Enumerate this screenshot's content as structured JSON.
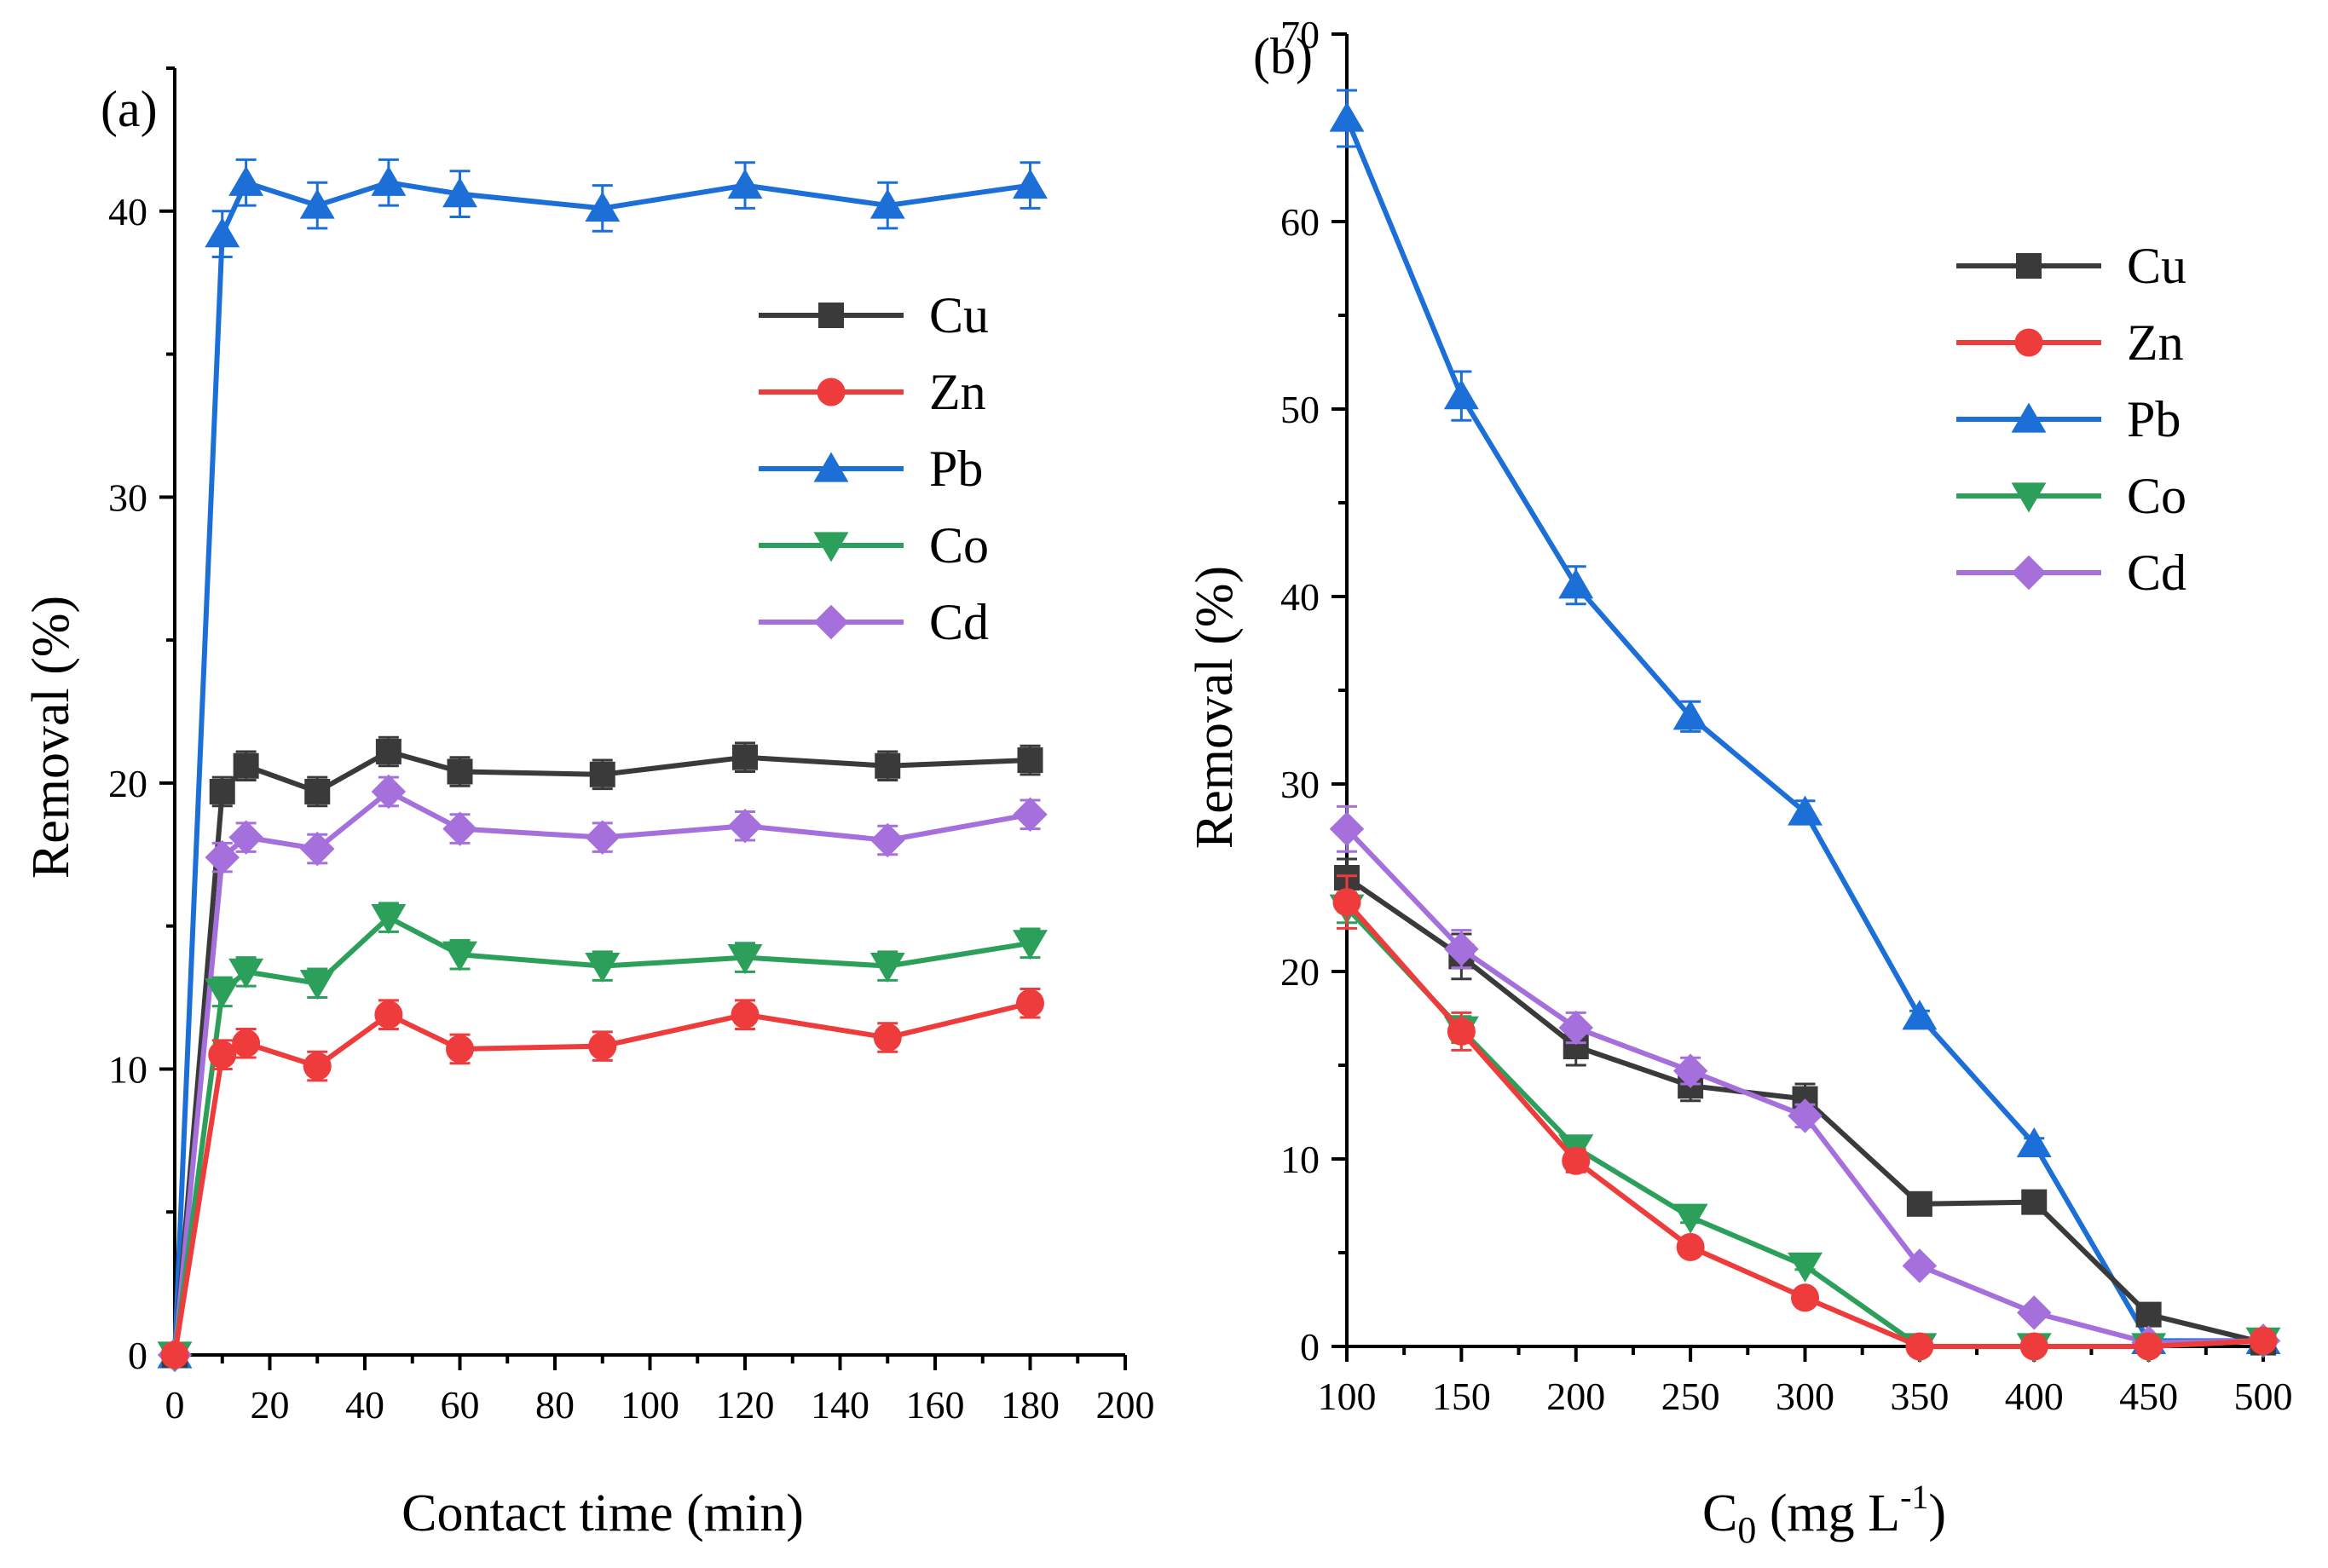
{
  "colors": {
    "Cu": "#3a3a3a",
    "Zn": "#ee3b3b",
    "Pb": "#1c6fd6",
    "Co": "#2ca05a",
    "Cd": "#a56fdc"
  },
  "chart_data": [
    {
      "type": "line",
      "panel": "(a)",
      "xlabel": "Contact time (min)",
      "ylabel": "Removal (%)",
      "xlim": [
        0,
        200
      ],
      "ylim": [
        0,
        45
      ],
      "xticks": [
        0,
        20,
        40,
        60,
        80,
        100,
        120,
        140,
        160,
        180,
        200
      ],
      "yticks": [
        0,
        10,
        20,
        30,
        40
      ],
      "legend_position": "right",
      "x": [
        0,
        10,
        15,
        30,
        45,
        60,
        90,
        120,
        150,
        180
      ],
      "series": [
        {
          "name": "Cu",
          "marker": "square",
          "values": [
            0,
            19.7,
            20.6,
            19.7,
            21.1,
            20.4,
            20.3,
            20.9,
            20.6,
            20.8
          ],
          "errors": [
            0,
            0.5,
            0.5,
            0.5,
            0.5,
            0.5,
            0.5,
            0.5,
            0.5,
            0.5
          ]
        },
        {
          "name": "Zn",
          "marker": "circle",
          "values": [
            0,
            10.5,
            10.9,
            10.1,
            11.9,
            10.7,
            10.8,
            11.9,
            11.1,
            12.3
          ],
          "errors": [
            0,
            0.5,
            0.5,
            0.5,
            0.5,
            0.5,
            0.5,
            0.5,
            0.5,
            0.5
          ]
        },
        {
          "name": "Pb",
          "marker": "triangle-up",
          "values": [
            0,
            39.2,
            41.0,
            40.2,
            41.0,
            40.6,
            40.1,
            40.9,
            40.2,
            40.9
          ],
          "errors": [
            0,
            0.8,
            0.8,
            0.8,
            0.8,
            0.8,
            0.8,
            0.8,
            0.8,
            0.8
          ]
        },
        {
          "name": "Co",
          "marker": "triangle-down",
          "values": [
            0,
            12.7,
            13.4,
            13.0,
            15.3,
            14.0,
            13.6,
            13.9,
            13.6,
            14.4
          ],
          "errors": [
            0,
            0.5,
            0.5,
            0.5,
            0.5,
            0.5,
            0.5,
            0.5,
            0.5,
            0.5
          ]
        },
        {
          "name": "Cd",
          "marker": "diamond",
          "values": [
            0,
            17.4,
            18.1,
            17.7,
            19.7,
            18.4,
            18.1,
            18.5,
            18.0,
            18.9
          ],
          "errors": [
            0,
            0.5,
            0.5,
            0.5,
            0.5,
            0.5,
            0.5,
            0.5,
            0.5,
            0.5
          ]
        }
      ]
    },
    {
      "type": "line",
      "panel": "(b)",
      "xlabel": "C",
      "xlabel_sub": "0",
      "xlabel_unit": " (mg L",
      "xlabel_sup": "-1",
      "xlabel_close": ")",
      "ylabel": "Removal (%)",
      "xlim": [
        100,
        500
      ],
      "ylim": [
        0,
        70
      ],
      "xticks": [
        100,
        150,
        200,
        250,
        300,
        350,
        400,
        450,
        500
      ],
      "yticks": [
        0,
        10,
        20,
        30,
        40,
        50,
        60,
        70
      ],
      "legend_position": "top-right",
      "x": [
        100,
        150,
        200,
        250,
        300,
        350,
        400,
        450,
        500
      ],
      "series": [
        {
          "name": "Cu",
          "marker": "square",
          "values": [
            25.0,
            20.8,
            16.0,
            13.9,
            13.2,
            7.6,
            7.7,
            1.7,
            0.2
          ],
          "errors": [
            1.0,
            1.2,
            1.0,
            0.8,
            0.8,
            0.3,
            0.3,
            0.1,
            0.1
          ]
        },
        {
          "name": "Zn",
          "marker": "circle",
          "values": [
            23.7,
            16.8,
            9.9,
            5.3,
            2.6,
            0.0,
            0.0,
            0.0,
            0.3
          ],
          "errors": [
            1.4,
            1.0,
            0.6,
            0.3,
            0.2,
            0,
            0,
            0,
            0
          ]
        },
        {
          "name": "Pb",
          "marker": "triangle-up",
          "values": [
            65.5,
            50.7,
            40.6,
            33.6,
            28.5,
            17.6,
            10.8,
            0.3,
            0.3
          ],
          "errors": [
            1.5,
            1.3,
            1.0,
            0.8,
            0.6,
            0.3,
            0.3,
            0.1,
            0.1
          ]
        },
        {
          "name": "Co",
          "marker": "triangle-down",
          "values": [
            23.4,
            16.9,
            10.6,
            6.9,
            4.3,
            0.0,
            0.0,
            0.0,
            0.3
          ],
          "errors": [
            0.8,
            0.7,
            0.5,
            0.3,
            0.2,
            0,
            0,
            0,
            0
          ]
        },
        {
          "name": "Cd",
          "marker": "diamond",
          "values": [
            27.6,
            21.2,
            17.0,
            14.7,
            12.3,
            4.3,
            1.8,
            0.2,
            0.3
          ],
          "errors": [
            1.2,
            1.0,
            0.8,
            0.7,
            0.6,
            0.3,
            0.2,
            0.1,
            0.1
          ]
        }
      ]
    }
  ]
}
